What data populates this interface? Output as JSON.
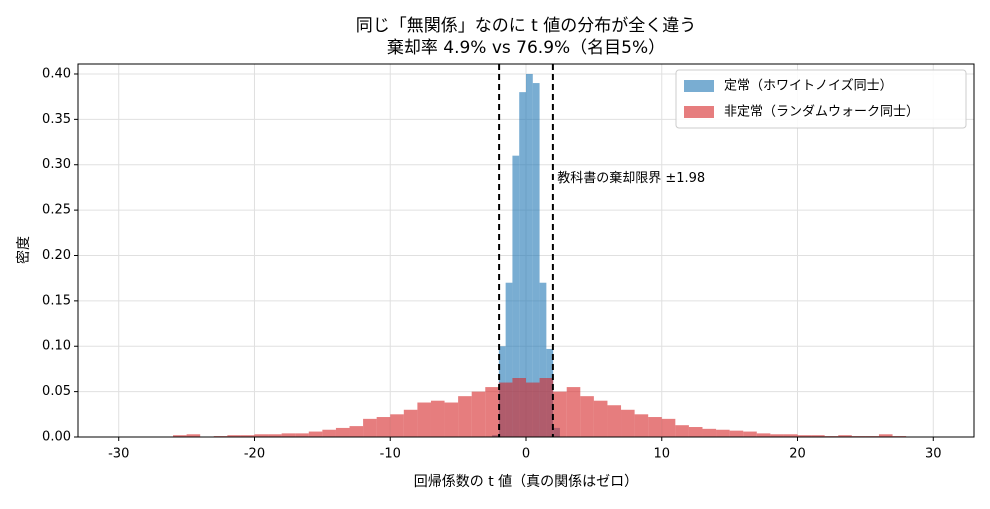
{
  "chart_data": {
    "type": "histogram",
    "title": "同じ「無関係」なのに t 値の分布が全く違う",
    "subtitle": "棄却率 4.9% vs 76.9%（名目5%）",
    "x_label": "回帰係数の t 値（真の関係はゼロ）",
    "y_label": "密度",
    "xlim": [
      -33,
      33
    ],
    "ylim": [
      0,
      0.411
    ],
    "xticks": [
      -30,
      -20,
      -10,
      0,
      10,
      20,
      30
    ],
    "yticks": [
      {
        "value": 0,
        "label": "0.00"
      },
      {
        "value": 0.05,
        "label": "0.05"
      },
      {
        "value": 0.1,
        "label": "0.10"
      },
      {
        "value": 0.15,
        "label": "0.15"
      },
      {
        "value": 0.2,
        "label": "0.20"
      },
      {
        "value": 0.25,
        "label": "0.25"
      },
      {
        "value": 0.3,
        "label": "0.30"
      },
      {
        "value": 0.35,
        "label": "0.35"
      },
      {
        "value": 0.4,
        "label": "0.40"
      }
    ],
    "grid": true,
    "legend": "upper right",
    "alpha": 0.6,
    "series": [
      {
        "name": "定常（ホワイトノイズ同士）",
        "color": "#1f77b4",
        "bins": [
          -2.5,
          -2,
          -1.5,
          -1,
          -0.5,
          0,
          0.5,
          1,
          1.5,
          2,
          2.5
        ],
        "values": [
          0.002,
          0.1,
          0.17,
          0.31,
          0.38,
          0.4,
          0.39,
          0.17,
          0.097,
          0.01
        ]
      },
      {
        "name": "非定常（ランダムウォーク同士）",
        "color": "#d62728",
        "bins": [
          -26,
          -25,
          -24,
          -23,
          -22,
          -21,
          -20,
          -19,
          -18,
          -17,
          -16,
          -15,
          -14,
          -13,
          -12,
          -11,
          -10,
          -9,
          -8,
          -7,
          -6,
          -5,
          -4,
          -3,
          -2,
          -1,
          0,
          1,
          2,
          3,
          4,
          5,
          6,
          7,
          8,
          9,
          10,
          11,
          12,
          13,
          14,
          15,
          16,
          17,
          18,
          19,
          20,
          21,
          22,
          23,
          24,
          25,
          26,
          27,
          28
        ],
        "values": [
          0.002,
          0.003,
          0,
          0.001,
          0.002,
          0.002,
          0.003,
          0.003,
          0.004,
          0.004,
          0.006,
          0.008,
          0.01,
          0.012,
          0.02,
          0.022,
          0.025,
          0.03,
          0.038,
          0.04,
          0.038,
          0.045,
          0.05,
          0.055,
          0.06,
          0.065,
          0.06,
          0.065,
          0.05,
          0.055,
          0.045,
          0.04,
          0.035,
          0.03,
          0.025,
          0.022,
          0.02,
          0.013,
          0.011,
          0.009,
          0.008,
          0.007,
          0.006,
          0.004,
          0.003,
          0.003,
          0.002,
          0.002,
          0.001,
          0.002,
          0.001,
          0.001,
          0.003,
          0.001
        ]
      }
    ],
    "vlines": [
      -1.98,
      1.98
    ],
    "annotation": {
      "text": "教科書の棄却限界 ±1.98",
      "x": 2.3,
      "y": 0.285
    }
  }
}
